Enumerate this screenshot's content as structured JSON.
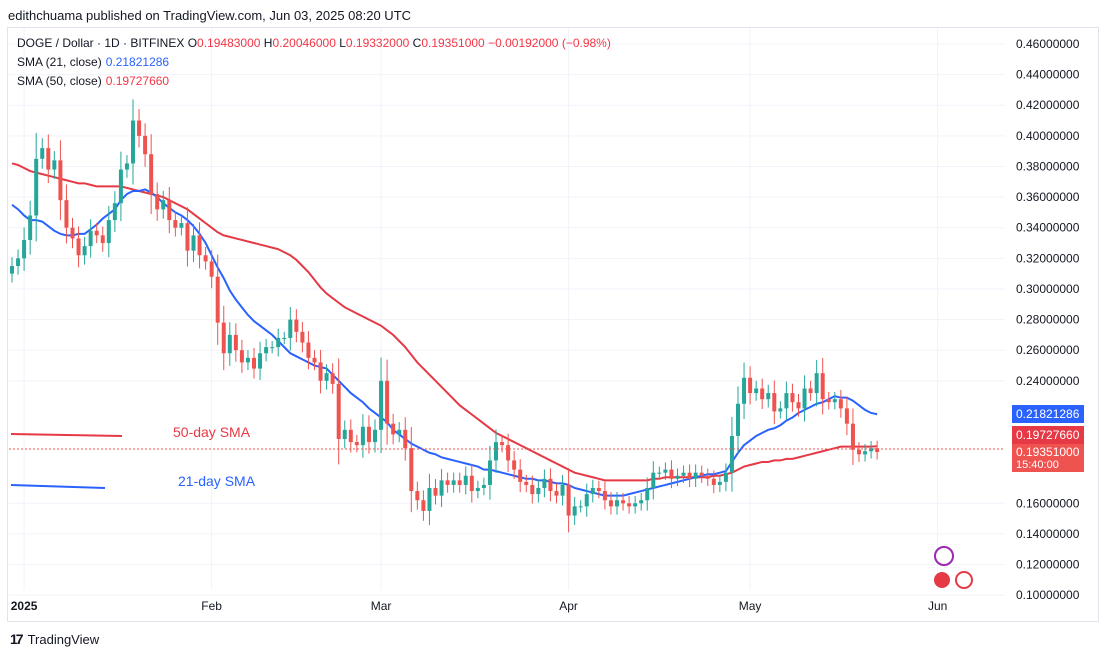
{
  "header": {
    "published": "edithchuama published on TradingView.com, Jun 03, 2025 08:20 UTC"
  },
  "legend": {
    "symbol": "DOGE / Dollar · 1D · BITFINEX",
    "o_label": "O",
    "o_value": "0.19483000",
    "h_label": "H",
    "h_value": "0.20046000",
    "l_label": "L",
    "l_value": "0.19332000",
    "c_label": "C",
    "c_value": "0.19351000",
    "change": "−0.00192000 (−0.98%)",
    "sma21_label": "SMA (21, close)",
    "sma21_value": "0.21821286",
    "sma50_label": "SMA (50, close)",
    "sma50_value": "0.19727660"
  },
  "badges": {
    "sma21": "0.21821286",
    "sma50": "0.19727660",
    "price": "0.19351000",
    "countdown": "15:40:00"
  },
  "annotations": {
    "sma50": "50-day SMA",
    "sma21": "21-day SMA"
  },
  "footer": {
    "brand": "TradingView"
  },
  "colors": {
    "up": "#26a69a",
    "down": "#ef5350",
    "sma21": "#2962ff",
    "sma50": "#e53945",
    "grid": "#f0f3fa"
  },
  "chart_data": {
    "type": "candlestick",
    "symbol": "DOGE / Dollar",
    "interval": "1D",
    "exchange": "BITFINEX",
    "y_ticks": [
      "0.46000000",
      "0.44000000",
      "0.42000000",
      "0.40000000",
      "0.38000000",
      "0.36000000",
      "0.34000000",
      "0.32000000",
      "0.30000000",
      "0.28000000",
      "0.26000000",
      "0.24000000",
      "0.16000000",
      "0.14000000",
      "0.12000000",
      "0.10000000"
    ],
    "ylim": [
      0.1,
      0.46
    ],
    "x_labels": [
      "2025",
      "Feb",
      "Mar",
      "Apr",
      "May",
      "Jun"
    ],
    "x_label_dates": [
      "2025-01-01",
      "2025-02-01",
      "2025-03-01",
      "2025-04-01",
      "2025-05-01",
      "2025-06-01"
    ],
    "start_date": "2024-12-30",
    "close": [
      0.315,
      0.32,
      0.332,
      0.348,
      0.385,
      0.392,
      0.378,
      0.384,
      0.358,
      0.34,
      0.333,
      0.322,
      0.328,
      0.338,
      0.335,
      0.33,
      0.345,
      0.356,
      0.378,
      0.382,
      0.41,
      0.4,
      0.388,
      0.362,
      0.352,
      0.358,
      0.345,
      0.34,
      0.343,
      0.325,
      0.335,
      0.322,
      0.318,
      0.308,
      0.278,
      0.258,
      0.27,
      0.26,
      0.252,
      0.255,
      0.248,
      0.258,
      0.262,
      0.262,
      0.268,
      0.268,
      0.28,
      0.272,
      0.265,
      0.255,
      0.252,
      0.24,
      0.245,
      0.238,
      0.202,
      0.208,
      0.2,
      0.198,
      0.21,
      0.2,
      0.208,
      0.24,
      0.212,
      0.205,
      0.208,
      0.196,
      0.168,
      0.162,
      0.155,
      0.17,
      0.165,
      0.175,
      0.172,
      0.175,
      0.172,
      0.178,
      0.168,
      0.17,
      0.172,
      0.188,
      0.2,
      0.198,
      0.188,
      0.182,
      0.174,
      0.172,
      0.166,
      0.17,
      0.176,
      0.168,
      0.165,
      0.172,
      0.152,
      0.158,
      0.158,
      0.166,
      0.17,
      0.168,
      0.162,
      0.158,
      0.162,
      0.16,
      0.158,
      0.16,
      0.162,
      0.17,
      0.18,
      0.18,
      0.182,
      0.176,
      0.178,
      0.18,
      0.176,
      0.18,
      0.178,
      0.176,
      0.172,
      0.174,
      0.18,
      0.204,
      0.225,
      0.242,
      0.232,
      0.235,
      0.228,
      0.232,
      0.22,
      0.222,
      0.232,
      0.226,
      0.222,
      0.235,
      0.232,
      0.245,
      0.228,
      0.226,
      0.228,
      0.222,
      0.212,
      0.195,
      0.192,
      0.194,
      0.196,
      0.1935
    ],
    "sma21": [
      0.355,
      0.352,
      0.348,
      0.345,
      0.345,
      0.344,
      0.341,
      0.338,
      0.336,
      0.335,
      0.335,
      0.336,
      0.336,
      0.339,
      0.342,
      0.346,
      0.349,
      0.352,
      0.358,
      0.362,
      0.364,
      0.364,
      0.365,
      0.363,
      0.36,
      0.356,
      0.353,
      0.35,
      0.348,
      0.345,
      0.341,
      0.336,
      0.33,
      0.322,
      0.314,
      0.307,
      0.299,
      0.293,
      0.288,
      0.283,
      0.279,
      0.276,
      0.273,
      0.27,
      0.266,
      0.262,
      0.258,
      0.256,
      0.254,
      0.252,
      0.25,
      0.249,
      0.248,
      0.244,
      0.24,
      0.236,
      0.232,
      0.229,
      0.226,
      0.222,
      0.219,
      0.216,
      0.213,
      0.208,
      0.205,
      0.202,
      0.199,
      0.197,
      0.195,
      0.193,
      0.192,
      0.19,
      0.189,
      0.188,
      0.187,
      0.186,
      0.185,
      0.184,
      0.182,
      0.182,
      0.181,
      0.18,
      0.179,
      0.178,
      0.177,
      0.176,
      0.176,
      0.175,
      0.175,
      0.174,
      0.173,
      0.173,
      0.172,
      0.17,
      0.169,
      0.168,
      0.167,
      0.166,
      0.165,
      0.165,
      0.165,
      0.165,
      0.166,
      0.167,
      0.168,
      0.169,
      0.17,
      0.171,
      0.172,
      0.173,
      0.174,
      0.175,
      0.176,
      0.177,
      0.178,
      0.179,
      0.179,
      0.18,
      0.181,
      0.187,
      0.193,
      0.198,
      0.201,
      0.204,
      0.206,
      0.208,
      0.209,
      0.211,
      0.214,
      0.216,
      0.219,
      0.221,
      0.223,
      0.225,
      0.226,
      0.228,
      0.23,
      0.229,
      0.229,
      0.227,
      0.224,
      0.221,
      0.219,
      0.2182
    ],
    "sma50": [
      0.382,
      0.381,
      0.379,
      0.377,
      0.376,
      0.375,
      0.374,
      0.373,
      0.372,
      0.371,
      0.37,
      0.369,
      0.369,
      0.368,
      0.367,
      0.367,
      0.367,
      0.367,
      0.367,
      0.366,
      0.365,
      0.364,
      0.363,
      0.362,
      0.361,
      0.36,
      0.358,
      0.356,
      0.354,
      0.352,
      0.349,
      0.346,
      0.343,
      0.34,
      0.337,
      0.335,
      0.334,
      0.333,
      0.332,
      0.331,
      0.33,
      0.329,
      0.328,
      0.327,
      0.326,
      0.324,
      0.322,
      0.319,
      0.315,
      0.311,
      0.306,
      0.301,
      0.297,
      0.294,
      0.291,
      0.288,
      0.286,
      0.284,
      0.282,
      0.28,
      0.278,
      0.276,
      0.273,
      0.27,
      0.266,
      0.262,
      0.257,
      0.252,
      0.248,
      0.244,
      0.24,
      0.236,
      0.232,
      0.228,
      0.224,
      0.221,
      0.218,
      0.215,
      0.212,
      0.209,
      0.206,
      0.204,
      0.202,
      0.2,
      0.198,
      0.196,
      0.194,
      0.192,
      0.19,
      0.188,
      0.186,
      0.184,
      0.182,
      0.18,
      0.179,
      0.178,
      0.177,
      0.176,
      0.175,
      0.175,
      0.175,
      0.175,
      0.175,
      0.175,
      0.175,
      0.175,
      0.176,
      0.176,
      0.177,
      0.177,
      0.177,
      0.177,
      0.177,
      0.177,
      0.177,
      0.177,
      0.178,
      0.178,
      0.179,
      0.18,
      0.182,
      0.184,
      0.185,
      0.186,
      0.187,
      0.187,
      0.188,
      0.188,
      0.189,
      0.189,
      0.19,
      0.191,
      0.192,
      0.193,
      0.194,
      0.195,
      0.196,
      0.197,
      0.197,
      0.197,
      0.197,
      0.197,
      0.197,
      0.1973
    ]
  }
}
